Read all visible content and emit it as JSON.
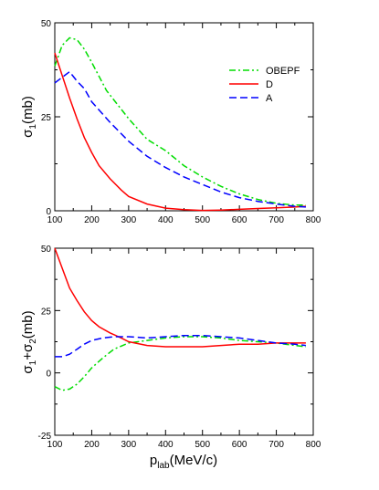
{
  "chart_data": [
    {
      "type": "line",
      "ylabel": "σ1(mb)",
      "ylabel_main": "σ",
      "ylabel_sub": "1",
      "ylabel_tail": "(mb)",
      "xlabel": "",
      "xlim": [
        100,
        800
      ],
      "ylim": [
        0,
        50
      ],
      "x_ticks": [
        100,
        200,
        300,
        400,
        500,
        600,
        700,
        800
      ],
      "y_ticks": [
        0,
        25,
        50
      ],
      "grid": false,
      "legend_position": "top-right",
      "series": [
        {
          "name": "OBEPF",
          "color": "#00dd00",
          "dash": "dash-dot",
          "x": [
            100,
            120,
            140,
            160,
            180,
            200,
            240,
            300,
            350,
            400,
            450,
            500,
            550,
            600,
            650,
            700,
            750,
            780
          ],
          "y": [
            38.5,
            44,
            46,
            45.5,
            43,
            39.5,
            32,
            24.5,
            19,
            16,
            12,
            9,
            6.5,
            4.5,
            3,
            2,
            1.5,
            1.5
          ]
        },
        {
          "name": "D",
          "color": "#ff0000",
          "dash": "solid",
          "x": [
            100,
            120,
            140,
            160,
            180,
            200,
            220,
            250,
            280,
            300,
            350,
            400,
            450,
            500,
            550,
            600,
            650,
            700,
            750,
            780
          ],
          "y": [
            42,
            36,
            30,
            24.5,
            19.5,
            15.5,
            12,
            8.5,
            5.5,
            3.8,
            1.8,
            0.7,
            0.3,
            0.1,
            0.2,
            0.4,
            0.6,
            0.8,
            1,
            1.2
          ]
        },
        {
          "name": "A",
          "color": "#0000ff",
          "dash": "dashed",
          "x": [
            100,
            120,
            140,
            160,
            180,
            200,
            250,
            300,
            350,
            400,
            450,
            500,
            550,
            600,
            650,
            700,
            750,
            780
          ],
          "y": [
            34,
            35.5,
            37,
            34.5,
            32.5,
            29,
            23.5,
            18.5,
            14.5,
            11.5,
            9,
            7,
            5,
            3.5,
            2.5,
            1.8,
            1.2,
            1
          ]
        }
      ]
    },
    {
      "type": "line",
      "ylabel": "σ1+σ2(mb)",
      "ylabel_main": "σ",
      "ylabel_sub": "1",
      "ylabel_plus": "+σ",
      "ylabel_sub2": "2",
      "ylabel_tail": "(mb)",
      "xlabel": "plab(MeV/c)",
      "xlabel_main": "p",
      "xlabel_sub": "lab",
      "xlabel_tail": "(MeV/c)",
      "xlim": [
        100,
        800
      ],
      "ylim": [
        -25,
        50
      ],
      "x_ticks": [
        100,
        200,
        300,
        400,
        500,
        600,
        700,
        800
      ],
      "y_ticks": [
        -25,
        0,
        25,
        50
      ],
      "grid": false,
      "series": [
        {
          "name": "OBEPF",
          "color": "#00dd00",
          "dash": "dash-dot",
          "x": [
            100,
            120,
            140,
            160,
            180,
            200,
            230,
            260,
            300,
            350,
            400,
            450,
            500,
            550,
            600,
            650,
            700,
            750,
            780
          ],
          "y": [
            -5.5,
            -7,
            -6.5,
            -4.5,
            -1.5,
            2,
            6,
            9.5,
            12,
            13,
            14,
            14.5,
            14.5,
            14,
            13,
            12.5,
            12,
            11,
            10.5
          ]
        },
        {
          "name": "D",
          "color": "#ff0000",
          "dash": "solid",
          "x": [
            100,
            120,
            140,
            160,
            180,
            200,
            220,
            250,
            280,
            300,
            350,
            400,
            450,
            500,
            550,
            600,
            650,
            700,
            750,
            780
          ],
          "y": [
            50,
            42,
            34,
            29,
            24.5,
            21,
            18.5,
            16,
            14,
            12.5,
            11,
            10.5,
            10.5,
            10.5,
            11,
            11.5,
            11.5,
            12,
            12,
            12
          ]
        },
        {
          "name": "A",
          "color": "#0000ff",
          "dash": "dashed",
          "x": [
            100,
            120,
            140,
            160,
            180,
            200,
            230,
            260,
            300,
            350,
            400,
            450,
            500,
            550,
            600,
            650,
            700,
            750,
            780
          ],
          "y": [
            6.5,
            6.5,
            7.5,
            9.5,
            11.5,
            13,
            14,
            14.5,
            14.5,
            14,
            14.5,
            15,
            15,
            14.5,
            14,
            13,
            12,
            11.5,
            11
          ]
        }
      ]
    }
  ]
}
